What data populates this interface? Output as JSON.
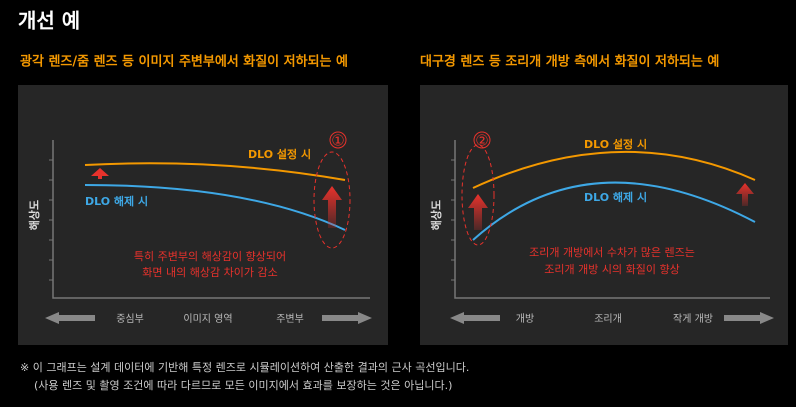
{
  "title": "개선 예",
  "panels": [
    {
      "title": "광각 렌즈/줌 렌즈 등 이미지 주변부에서 화질이 저하되는 예",
      "y_label": "해상도",
      "x_labels": [
        "중심부",
        "이미지 영역",
        "주변부"
      ],
      "curve_labels": {
        "on": "DLO 설정 시",
        "off": "DLO 해제 시"
      },
      "marker": "①",
      "annotation": [
        "특히 주변부의 해상감이 향상되어",
        "화면 내의 해상감 차이가 감소"
      ]
    },
    {
      "title": "대구경 렌즈 등 조리개 개방 측에서 화질이 저하되는 예",
      "y_label": "해상도",
      "x_labels": [
        "개방",
        "조리개",
        "작게 개방"
      ],
      "curve_labels": {
        "on": "DLO 설정 시",
        "off": "DLO 해제 시"
      },
      "marker": "②",
      "annotation": [
        "조리개 개방에서 수차가 많은 렌즈는",
        "조리개 개방 시의 화질이 향상"
      ]
    }
  ],
  "notes": [
    "※ 이 그래프는 설계 데이터에 기반해 특정 렌즈로 시뮬레이션하여 산출한 결과의 근사 곡선입니다.",
    "(사용 렌즈 및 촬영 조건에 따라 다르므로  모든 이미지에서 효과를 보장하는 것은 아닙니다.)"
  ]
}
